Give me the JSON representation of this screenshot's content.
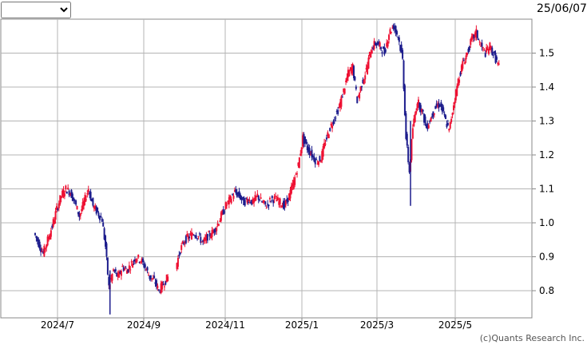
{
  "header": {
    "period_value": "",
    "date_label": "25/06/07"
  },
  "chart_data": {
    "type": "candlestick",
    "y_ticks": [
      0.8,
      0.9,
      1.0,
      1.1,
      1.2,
      1.3,
      1.4,
      1.5
    ],
    "y_tick_labels": [
      "0.8",
      "0.9",
      "1.0",
      "1.1",
      "1.2",
      "1.3",
      "1.4",
      "1.5"
    ],
    "ylim": [
      0.72,
      1.6
    ],
    "x_ticks": [
      "2024/7",
      "2024/9",
      "2024/11",
      "2025/1",
      "2025/3",
      "2025/5"
    ],
    "grid": true,
    "up_color": "#ee1133",
    "down_color": "#1c1c8c",
    "copyright": "(c)Quants Research Inc.",
    "series": [
      [
        0,
        0.97
      ],
      [
        4,
        0.94
      ],
      [
        8,
        0.91
      ],
      [
        12,
        0.95
      ],
      [
        16,
        0.99
      ],
      [
        20,
        1.04
      ],
      [
        24,
        1.08
      ],
      [
        28,
        1.1
      ],
      [
        32,
        1.09
      ],
      [
        36,
        1.06
      ],
      [
        40,
        1.02
      ],
      [
        44,
        1.06
      ],
      [
        48,
        1.1
      ],
      [
        52,
        1.05
      ],
      [
        56,
        1.03
      ],
      [
        60,
        1.01
      ],
      [
        63,
        0.93
      ],
      [
        66,
        0.81
      ],
      [
        70,
        0.86
      ],
      [
        74,
        0.84
      ],
      [
        78,
        0.87
      ],
      [
        82,
        0.86
      ],
      [
        86,
        0.88
      ],
      [
        90,
        0.9
      ],
      [
        94,
        0.89
      ],
      [
        98,
        0.87
      ],
      [
        102,
        0.84
      ],
      [
        106,
        0.83
      ],
      [
        110,
        0.8
      ],
      [
        114,
        0.82
      ],
      [
        118,
        0.84
      ],
      [
        125,
        0.87
      ],
      [
        129,
        0.92
      ],
      [
        133,
        0.95
      ],
      [
        137,
        0.96
      ],
      [
        141,
        0.97
      ],
      [
        145,
        0.96
      ],
      [
        149,
        0.94
      ],
      [
        153,
        0.96
      ],
      [
        157,
        0.97
      ],
      [
        161,
        0.99
      ],
      [
        165,
        1.02
      ],
      [
        169,
        1.05
      ],
      [
        173,
        1.07
      ],
      [
        177,
        1.09
      ],
      [
        181,
        1.08
      ],
      [
        185,
        1.06
      ],
      [
        189,
        1.07
      ],
      [
        193,
        1.06
      ],
      [
        197,
        1.08
      ],
      [
        201,
        1.06
      ],
      [
        205,
        1.05
      ],
      [
        209,
        1.07
      ],
      [
        213,
        1.07
      ],
      [
        217,
        1.06
      ],
      [
        221,
        1.05
      ],
      [
        225,
        1.08
      ],
      [
        229,
        1.12
      ],
      [
        233,
        1.17
      ],
      [
        237,
        1.25
      ],
      [
        241,
        1.22
      ],
      [
        245,
        1.2
      ],
      [
        249,
        1.18
      ],
      [
        253,
        1.19
      ],
      [
        257,
        1.24
      ],
      [
        261,
        1.28
      ],
      [
        265,
        1.31
      ],
      [
        269,
        1.34
      ],
      [
        273,
        1.39
      ],
      [
        277,
        1.44
      ],
      [
        281,
        1.46
      ],
      [
        285,
        1.36
      ],
      [
        289,
        1.41
      ],
      [
        293,
        1.45
      ],
      [
        297,
        1.51
      ],
      [
        301,
        1.53
      ],
      [
        305,
        1.52
      ],
      [
        309,
        1.5
      ],
      [
        313,
        1.56
      ],
      [
        317,
        1.58
      ],
      [
        321,
        1.55
      ],
      [
        325,
        1.48
      ],
      [
        328,
        1.25
      ],
      [
        331,
        1.15
      ],
      [
        334,
        1.28
      ],
      [
        338,
        1.36
      ],
      [
        342,
        1.33
      ],
      [
        346,
        1.28
      ],
      [
        350,
        1.31
      ],
      [
        354,
        1.34
      ],
      [
        358,
        1.35
      ],
      [
        362,
        1.31
      ],
      [
        366,
        1.27
      ],
      [
        370,
        1.35
      ],
      [
        374,
        1.42
      ],
      [
        378,
        1.47
      ],
      [
        382,
        1.5
      ],
      [
        386,
        1.54
      ],
      [
        390,
        1.56
      ],
      [
        394,
        1.52
      ],
      [
        398,
        1.5
      ],
      [
        402,
        1.52
      ],
      [
        406,
        1.49
      ],
      [
        410,
        1.46
      ]
    ]
  }
}
